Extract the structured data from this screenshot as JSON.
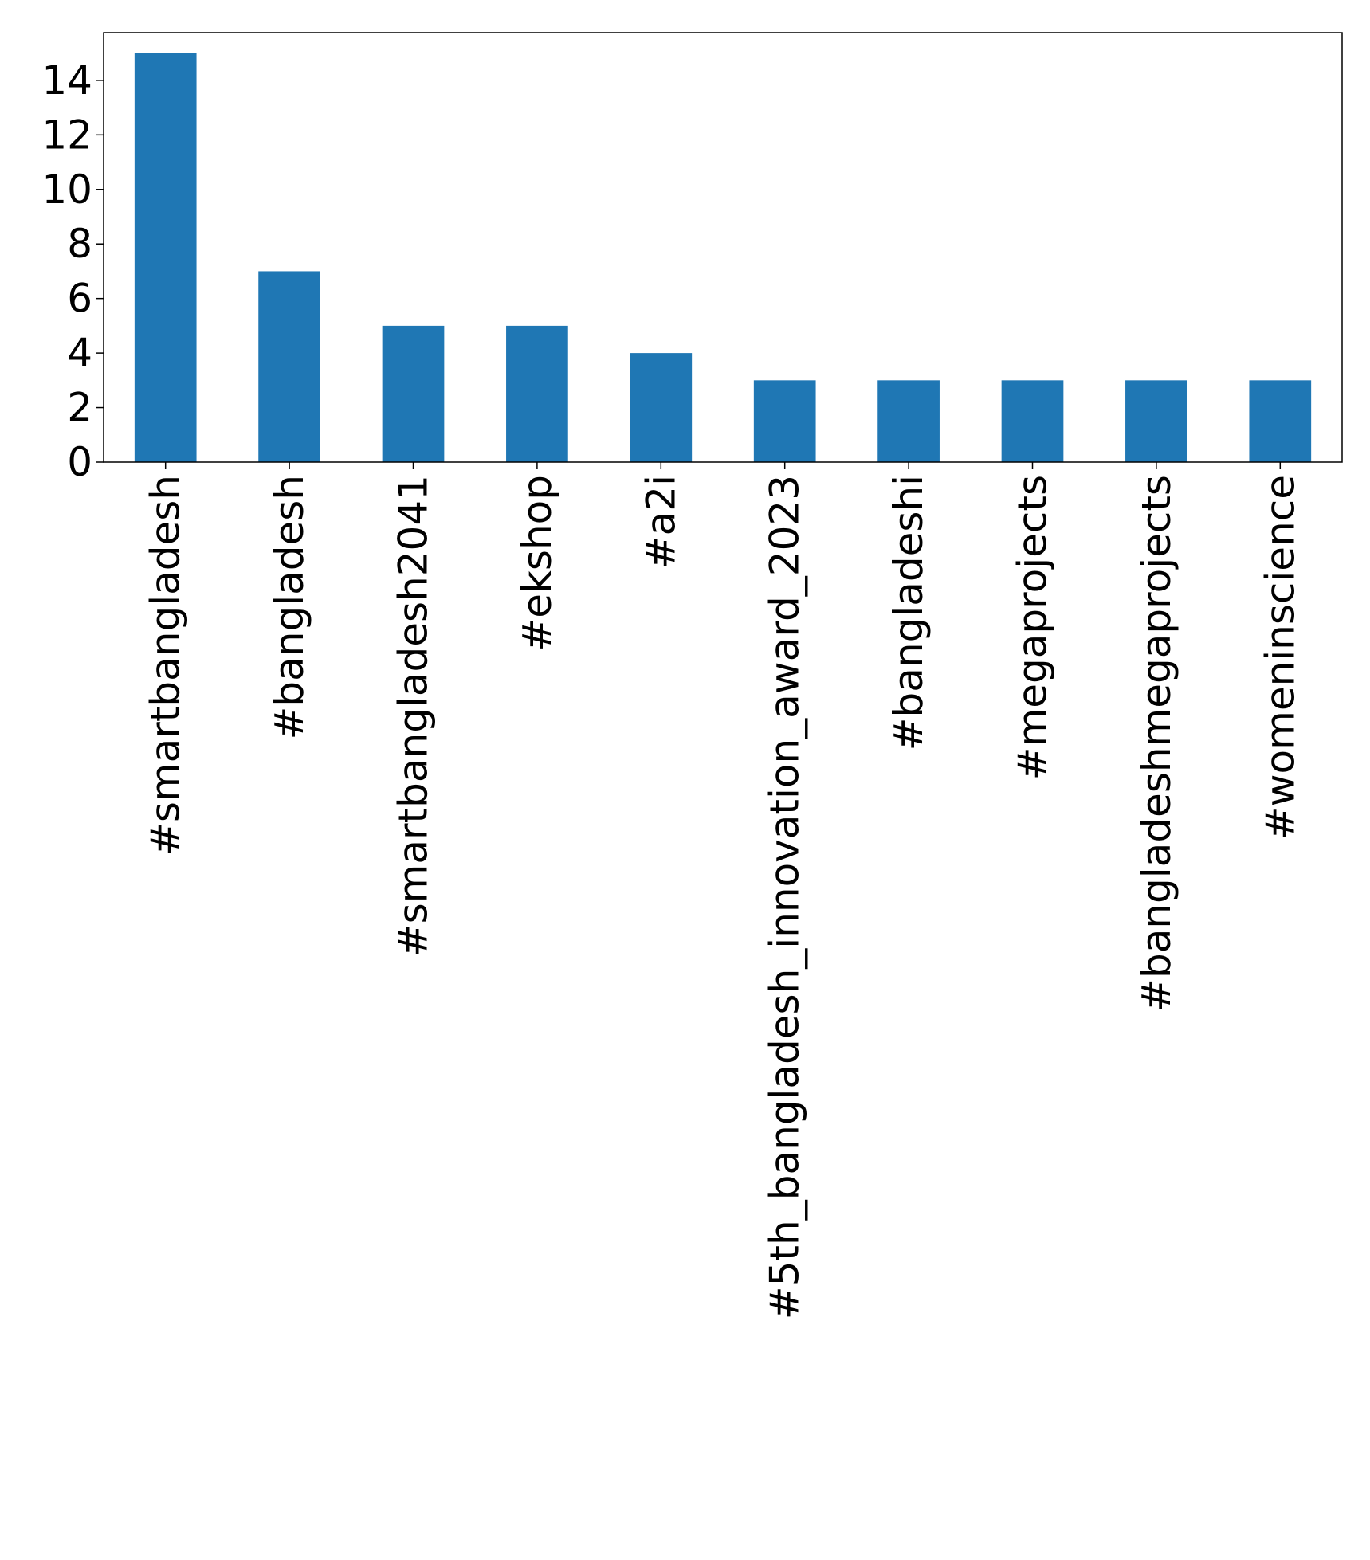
{
  "chart_data": {
    "type": "bar",
    "title": "",
    "xlabel": "",
    "ylabel": "",
    "categories": [
      "#smartbangladesh",
      "#bangladesh",
      "#smartbangladesh2041",
      "#ekshop",
      "#a2i",
      "#5th_bangladesh_innovation_award_2023",
      "#bangladeshi",
      "#megaprojects",
      "#bangladeshmegaprojects",
      "#womeninscience"
    ],
    "values": [
      15,
      7,
      5,
      5,
      4,
      3,
      3,
      3,
      3,
      3
    ],
    "ylim": [
      0,
      15.75
    ],
    "yticks": [
      0,
      2,
      4,
      6,
      8,
      10,
      12,
      14
    ],
    "bar_color": "#1f77b4",
    "grid": false,
    "legend": "none"
  }
}
